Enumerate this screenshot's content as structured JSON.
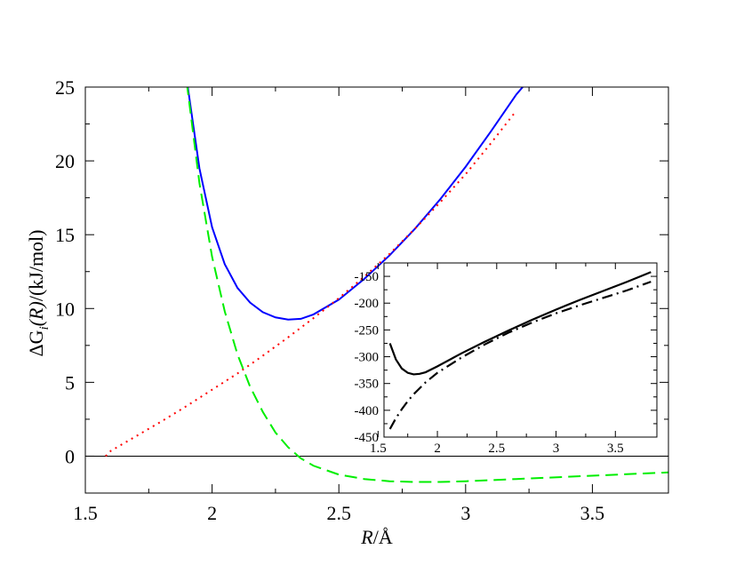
{
  "chart_data": [
    {
      "type": "line",
      "xlabel": {
        "italic": "R",
        "rest": "/Å"
      },
      "ylabel": {
        "prefix": "ΔG",
        "sub": "i",
        "italic": "(R)",
        "rest": "/(kJ/mol)"
      },
      "xlim": [
        1.5,
        3.8
      ],
      "ylim": [
        -2.5,
        25
      ],
      "xticks": [
        "1.5",
        "2",
        "2.5",
        "3",
        "3.5"
      ],
      "yticks": [
        "0",
        "5",
        "10",
        "15",
        "20",
        "25"
      ],
      "reference_line_y": 0,
      "series": [
        {
          "color": "#0000ff",
          "style": "solid",
          "x": [
            1.9,
            1.95,
            2.0,
            2.05,
            2.1,
            2.15,
            2.2,
            2.25,
            2.3,
            2.35,
            2.4,
            2.5,
            2.6,
            2.7,
            2.8,
            2.9,
            3.0,
            3.1,
            3.2,
            3.25
          ],
          "y": [
            25.5,
            19.5,
            15.5,
            13.0,
            11.4,
            10.4,
            9.75,
            9.4,
            9.25,
            9.3,
            9.6,
            10.6,
            12.0,
            13.6,
            15.4,
            17.4,
            19.6,
            22.0,
            24.5,
            25.5
          ]
        },
        {
          "color": "#ff0000",
          "style": "dotted",
          "x": [
            1.58,
            1.6,
            1.7,
            1.8,
            1.9,
            2.0,
            2.1,
            2.2,
            2.3,
            2.4,
            2.5,
            2.6,
            2.7,
            2.8,
            2.9,
            3.0,
            3.1,
            3.2
          ],
          "y": [
            0.0,
            0.35,
            1.35,
            2.35,
            3.4,
            4.5,
            5.6,
            6.8,
            8.05,
            9.35,
            10.7,
            12.15,
            13.7,
            15.4,
            17.2,
            19.1,
            21.2,
            23.4
          ]
        },
        {
          "color": "#00ee00",
          "style": "dashed",
          "x": [
            1.9,
            1.95,
            2.0,
            2.05,
            2.1,
            2.15,
            2.2,
            2.25,
            2.3,
            2.35,
            2.4,
            2.5,
            2.6,
            2.7,
            2.8,
            2.9,
            3.0,
            3.2,
            3.4,
            3.6,
            3.8
          ],
          "y": [
            25.3,
            18.5,
            13.5,
            9.8,
            6.9,
            4.7,
            3.0,
            1.6,
            0.6,
            -0.15,
            -0.65,
            -1.25,
            -1.55,
            -1.7,
            -1.75,
            -1.75,
            -1.7,
            -1.55,
            -1.4,
            -1.25,
            -1.1
          ]
        }
      ]
    },
    {
      "type": "line",
      "xlim": [
        1.55,
        3.85
      ],
      "ylim": [
        -450,
        -125
      ],
      "xticks": [
        "1.5",
        "2",
        "2.5",
        "3",
        "3.5"
      ],
      "yticks": [
        "-450",
        "-400",
        "-350",
        "-300",
        "-250",
        "-200",
        "-150"
      ],
      "series": [
        {
          "color": "#000000",
          "style": "solid",
          "x": [
            1.6,
            1.65,
            1.7,
            1.75,
            1.8,
            1.85,
            1.9,
            2.0,
            2.2,
            2.4,
            2.6,
            2.8,
            3.0,
            3.2,
            3.4,
            3.6,
            3.8
          ],
          "y": [
            -275,
            -305,
            -322,
            -330,
            -333,
            -332,
            -329,
            -318,
            -294,
            -272,
            -251,
            -231,
            -212,
            -194,
            -177,
            -160,
            -142
          ]
        },
        {
          "color": "#000000",
          "style": "dashdot",
          "x": [
            1.6,
            1.65,
            1.7,
            1.75,
            1.8,
            1.85,
            1.9,
            2.0,
            2.2,
            2.4,
            2.6,
            2.8,
            3.0,
            3.2,
            3.4,
            3.6,
            3.8
          ],
          "y": [
            -435,
            -415,
            -398,
            -383,
            -370,
            -359,
            -348,
            -330,
            -302,
            -277,
            -255,
            -236,
            -219,
            -204,
            -190,
            -176,
            -160
          ]
        }
      ]
    }
  ]
}
